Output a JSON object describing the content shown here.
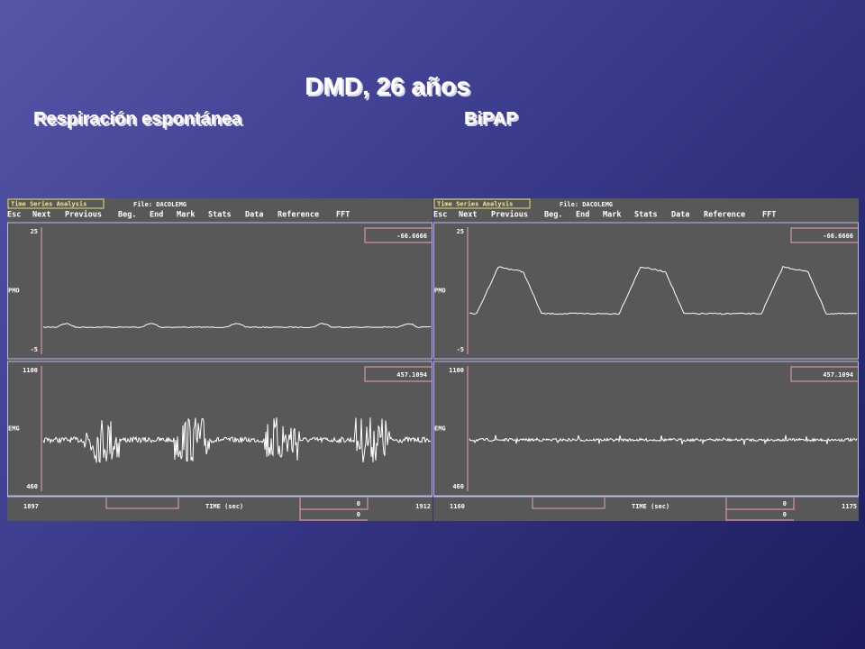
{
  "title": "DMD, 26 años",
  "left_caption": "Respiración espontánea",
  "right_caption": "BiPAP",
  "panels": [
    {
      "app_title": "Time Series Analysis",
      "file": "File: DACOLEMG",
      "menu": [
        "Esc",
        "Next",
        "Previous",
        "Beg.",
        "End",
        "Mark",
        "Stats",
        "Data",
        "Reference",
        "FFT"
      ],
      "pmo": {
        "label": "PMO",
        "max": 25,
        "min": -5,
        "readout": -66.6666
      },
      "emg": {
        "label": "EMG",
        "max": 1100,
        "min": 460,
        "readout": 457.1094
      },
      "time": {
        "label": "TIME (sec)",
        "start": 1897,
        "end": 1912,
        "readouts": [
          0,
          0
        ]
      }
    },
    {
      "app_title": "Time Series Analysis",
      "file": "File: DACOLEMG",
      "menu": [
        "Esc",
        "Next",
        "Previous",
        "Beg.",
        "End",
        "Mark",
        "Stats",
        "Data",
        "Reference",
        "FFT"
      ],
      "pmo": {
        "label": "PMO",
        "max": 25,
        "min": -5,
        "readout": -66.6666
      },
      "emg": {
        "label": "EMG",
        "max": 1100,
        "min": 460,
        "readout": 457.1094
      },
      "time": {
        "label": "TIME (sec)",
        "start": 1160,
        "end": 1175,
        "readouts": [
          0,
          0
        ]
      }
    }
  ]
}
